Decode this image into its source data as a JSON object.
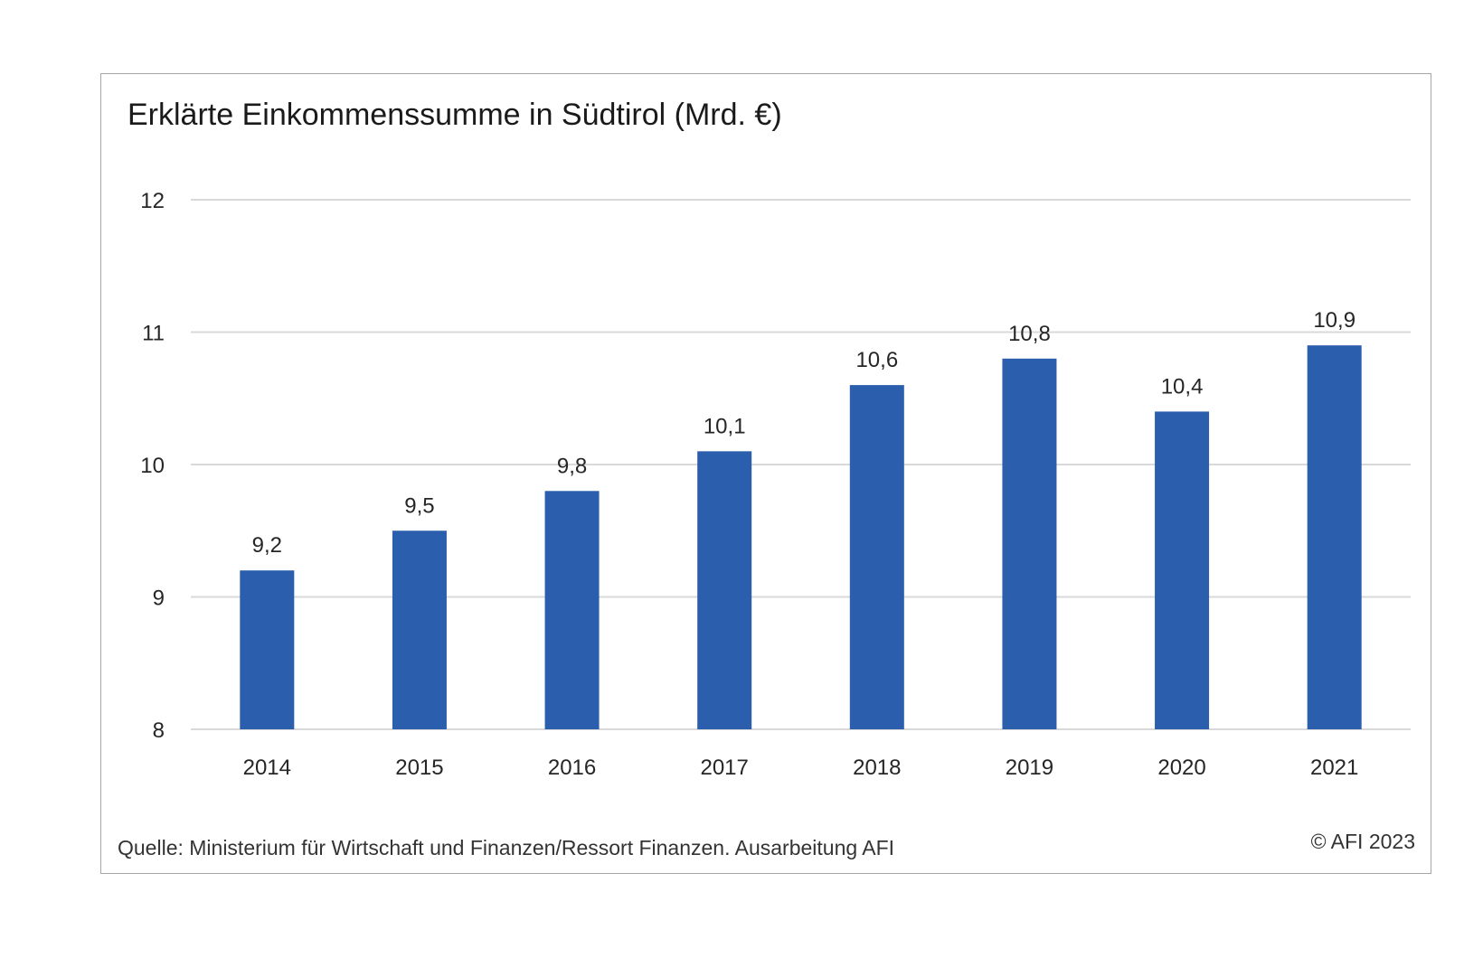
{
  "chart_data": {
    "type": "bar",
    "title": "Erklärte Einkommenssumme in Südtirol (Mrd. €)",
    "xlabel": "",
    "ylabel": "",
    "categories": [
      "2014",
      "2015",
      "2016",
      "2017",
      "2018",
      "2019",
      "2020",
      "2021"
    ],
    "values": [
      9.2,
      9.5,
      9.8,
      10.1,
      10.6,
      10.8,
      10.4,
      10.9
    ],
    "data_labels": [
      "9,2",
      "9,5",
      "9,8",
      "10,1",
      "10,6",
      "10,8",
      "10,4",
      "10,9"
    ],
    "ylim": [
      8,
      12
    ],
    "yticks": [
      8,
      9,
      10,
      11,
      12
    ],
    "ytick_labels": [
      "8",
      "9",
      "10",
      "11",
      "12"
    ],
    "grid": true,
    "legend": "none",
    "bar_color": "#2b5ead",
    "grid_color": "#d9d9d9"
  },
  "footer": {
    "source": "Quelle: Ministerium für Wirtschaft und Finanzen/Ressort Finanzen. Ausarbeitung AFI",
    "copyright": "© AFI  2023"
  }
}
